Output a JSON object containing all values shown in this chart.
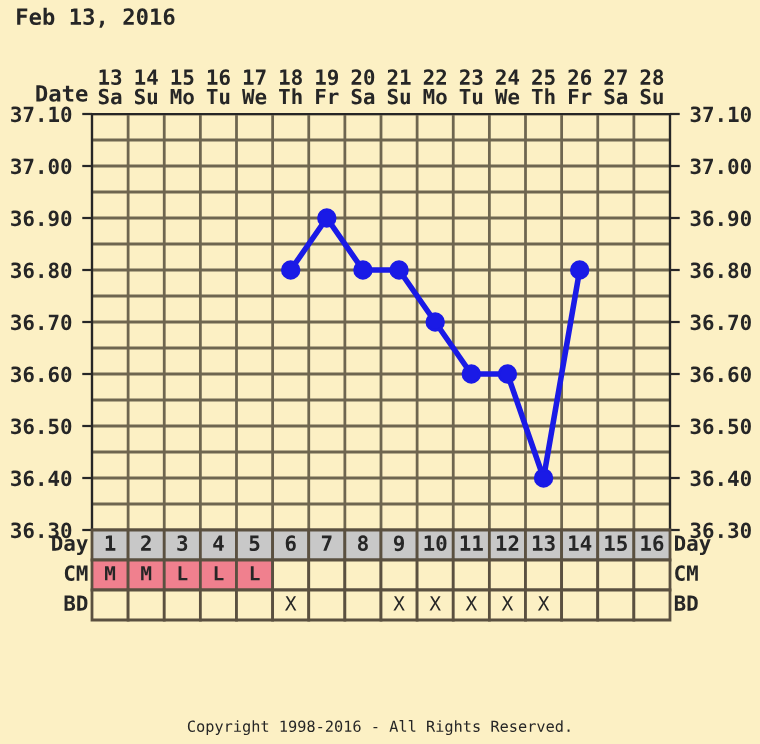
{
  "chart_data": [
    {
      "type": "line",
      "title": "Feb 13, 2016",
      "xlabel": "Date",
      "categories": [
        "13\nSa",
        "14\nSu",
        "15\nMo",
        "16\nTu",
        "17\nWe",
        "18\nTh",
        "19\nFr",
        "20\nSa",
        "21\nSu",
        "22\nMo",
        "23\nTu",
        "24\nWe",
        "25\nTh",
        "26\nFr",
        "27\nSa",
        "28\nSu"
      ],
      "series": [
        {
          "color": "#1a1ae6",
          "values": [
            null,
            null,
            null,
            null,
            null,
            36.8,
            36.9,
            36.8,
            36.8,
            36.7,
            36.6,
            36.6,
            36.4,
            36.8,
            null,
            null
          ]
        }
      ],
      "ylim": [
        36.3,
        37.1
      ],
      "yticks": [
        {
          "value": 36.3,
          "label": "36.30"
        },
        {
          "value": 36.4,
          "label": "36.40"
        },
        {
          "value": 36.5,
          "label": "36.50"
        },
        {
          "value": 36.6,
          "label": "36.60"
        },
        {
          "value": 36.7,
          "label": "36.70"
        },
        {
          "value": 36.8,
          "label": "36.80"
        },
        {
          "value": 36.9,
          "label": "36.90"
        },
        {
          "value": 37.0,
          "label": "37.00"
        },
        {
          "value": 37.1,
          "label": "37.10"
        }
      ],
      "y2lim": [
        36.3,
        37.1
      ],
      "y2ticks": [
        {
          "value": 36.3,
          "label": "36.30"
        },
        {
          "value": 36.4,
          "label": "36.40"
        },
        {
          "value": 36.5,
          "label": "36.50"
        },
        {
          "value": 36.6,
          "label": "36.60"
        },
        {
          "value": 36.7,
          "label": "36.70"
        },
        {
          "value": 36.8,
          "label": "36.80"
        },
        {
          "value": 36.9,
          "label": "36.90"
        },
        {
          "value": 37.0,
          "label": "37.00"
        },
        {
          "value": 37.1,
          "label": "37.10"
        }
      ],
      "grid": true,
      "marker": "circle",
      "line_style": "solid",
      "annotations": [
        "Copyright 1998-2016 - All Rights Reserved."
      ]
    },
    {
      "type": "heatmap",
      "xlabel": "Day",
      "categories": [
        "1",
        "2",
        "3",
        "4",
        "5",
        "6",
        "7",
        "8",
        "9",
        "10",
        "11",
        "12",
        "13",
        "14",
        "15",
        "16"
      ],
      "y_categories": [
        "CM",
        "BD"
      ],
      "y2_categories": [
        "CM",
        "BD"
      ],
      "cells": [
        [
          null,
          null,
          null,
          null,
          null,
          null,
          null,
          null,
          null,
          null,
          null,
          null,
          null,
          null,
          null,
          null
        ],
        [
          null,
          null,
          null,
          null,
          null,
          null,
          null,
          null,
          null,
          null,
          null,
          null,
          null,
          null,
          null,
          null
        ]
      ],
      "cell_labels": [
        [
          "M",
          "M",
          "L",
          "L",
          "L",
          null,
          null,
          null,
          null,
          null,
          null,
          null,
          null,
          null,
          null,
          null
        ],
        [
          null,
          null,
          null,
          null,
          null,
          "X",
          null,
          null,
          "X",
          "X",
          "X",
          "X",
          "X",
          null,
          null,
          null
        ]
      ]
    }
  ]
}
